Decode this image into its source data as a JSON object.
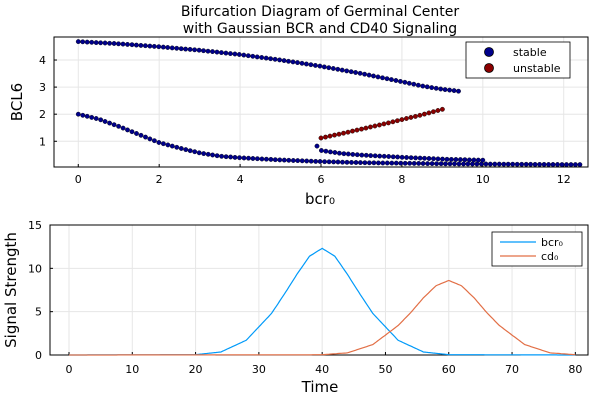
{
  "chart_data": [
    {
      "type": "scatter",
      "title_line1": "Bifurcation Diagram of Germinal Center",
      "title_line2": "with Gaussian BCR and CD40 Signaling",
      "xlabel": "bcr₀",
      "ylabel": "BCL6",
      "xlim": [
        -0.6,
        12.6
      ],
      "ylim": [
        0.05,
        4.85
      ],
      "xticks": [
        0,
        2,
        4,
        6,
        8,
        10,
        12
      ],
      "yticks": [
        1,
        2,
        3,
        4
      ],
      "grid": true,
      "legend_position": "top-right",
      "colors": {
        "stable": "#00008b",
        "unstable": "#8b0000"
      },
      "series": [
        {
          "name": "stable",
          "branches": [
            {
              "x": [
                0,
                1,
                2,
                3,
                4,
                5,
                6,
                7,
                8,
                8.5,
                9,
                9.4
              ],
              "y": [
                4.68,
                4.6,
                4.49,
                4.36,
                4.2,
                4.0,
                3.77,
                3.5,
                3.2,
                3.04,
                2.92,
                2.85
              ]
            },
            {
              "x": [
                0,
                0.5,
                1,
                1.5,
                2,
                2.5,
                3,
                3.5,
                4,
                5,
                6,
                7,
                8,
                9,
                10,
                11,
                12,
                12.4
              ],
              "y": [
                2.0,
                1.82,
                1.55,
                1.25,
                0.95,
                0.75,
                0.57,
                0.45,
                0.39,
                0.31,
                0.25,
                0.21,
                0.19,
                0.17,
                0.16,
                0.15,
                0.14,
                0.14
              ]
            },
            {
              "x": [
                5.9,
                6.0,
                6.5,
                7,
                8,
                9,
                10
              ],
              "y": [
                0.82,
                0.66,
                0.55,
                0.49,
                0.41,
                0.34,
                0.3
              ]
            }
          ]
        },
        {
          "name": "unstable",
          "branches": [
            {
              "x": [
                6.0,
                6.5,
                7,
                7.5,
                8,
                8.5,
                9
              ],
              "y": [
                1.12,
                1.28,
                1.45,
                1.62,
                1.8,
                1.98,
                2.18
              ]
            }
          ]
        }
      ]
    },
    {
      "type": "line",
      "xlabel": "Time",
      "ylabel": "Signal Strength",
      "xlim": [
        -3,
        82
      ],
      "ylim": [
        0,
        15
      ],
      "xticks": [
        0,
        10,
        20,
        30,
        40,
        50,
        60,
        70,
        80
      ],
      "yticks": [
        0,
        5,
        10,
        15
      ],
      "grid": true,
      "legend_position": "top-right",
      "colors": {
        "bcr0": "#009af9",
        "cd0": "#e26f46"
      },
      "series": [
        {
          "name": "bcr₀",
          "x": [
            0,
            20,
            24,
            28,
            32,
            34,
            36,
            38,
            40,
            42,
            44,
            46,
            48,
            52,
            56,
            60,
            80
          ],
          "y": [
            0,
            0.04,
            0.35,
            1.7,
            4.8,
            7.0,
            9.3,
            11.4,
            12.3,
            11.4,
            9.3,
            7.0,
            4.8,
            1.7,
            0.35,
            0.04,
            0
          ]
        },
        {
          "name": "cd₀",
          "x": [
            0,
            40,
            44,
            48,
            52,
            54,
            56,
            58,
            60,
            62,
            64,
            66,
            68,
            72,
            76,
            80
          ],
          "y": [
            0,
            0.03,
            0.25,
            1.2,
            3.4,
            4.9,
            6.6,
            8.0,
            8.6,
            8.0,
            6.6,
            4.9,
            3.4,
            1.2,
            0.25,
            0.03
          ]
        }
      ]
    }
  ]
}
